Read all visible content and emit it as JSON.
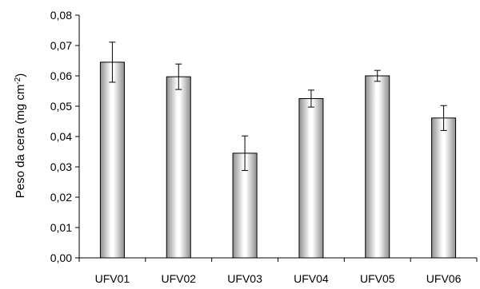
{
  "chart_data": {
    "type": "bar",
    "title": "",
    "xlabel": "",
    "ylabel": "Peso da cera (mg cm",
    "ylabel_sup": "-2",
    "ylabel_close": ")",
    "categories": [
      "UFV01",
      "UFV02",
      "UFV03",
      "UFV04",
      "UFV05",
      "UFV06"
    ],
    "values": [
      0.0645,
      0.0597,
      0.0345,
      0.0525,
      0.06,
      0.0461
    ],
    "error": [
      0.0066,
      0.0042,
      0.0057,
      0.0028,
      0.0018,
      0.0041
    ],
    "ylim": [
      0,
      0.08
    ],
    "yticks": [
      0.0,
      0.01,
      0.02,
      0.03,
      0.04,
      0.05,
      0.06,
      0.07,
      0.08
    ],
    "ytick_labels": [
      "0,00",
      "0,01",
      "0,02",
      "0,03",
      "0,04",
      "0,05",
      "0,06",
      "0,07",
      "0,08"
    ],
    "grid": false,
    "legend": "none",
    "bar_fill": "gray-white-gray cylindrical gradient"
  }
}
